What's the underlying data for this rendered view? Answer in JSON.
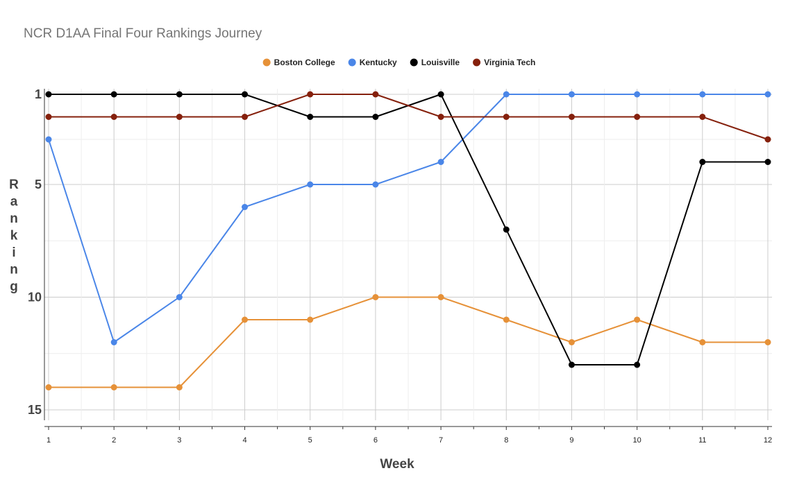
{
  "chart_data": {
    "type": "line",
    "title": "NCR D1AA Final Four Rankings Journey",
    "xlabel": "Week",
    "ylabel": "Ranking",
    "x": [
      1,
      2,
      3,
      4,
      5,
      6,
      7,
      8,
      9,
      10,
      11,
      12
    ],
    "x_tick_labels": [
      "1",
      "2",
      "3",
      "4",
      "5",
      "6",
      "7",
      "8",
      "9",
      "10",
      "11",
      "12"
    ],
    "ylim": [
      15,
      1
    ],
    "y_reversed": true,
    "y_ticks": [
      1,
      5,
      10,
      15
    ],
    "y_tick_labels": [
      "1",
      "5",
      "10",
      "15"
    ],
    "grid": true,
    "legend_position": "top",
    "series": [
      {
        "name": "Boston College",
        "color": "#e69138",
        "values": [
          14,
          14,
          14,
          11,
          11,
          10,
          10,
          11,
          12,
          11,
          12,
          12
        ]
      },
      {
        "name": "Kentucky",
        "color": "#4a86e8",
        "values": [
          3,
          12,
          10,
          6,
          5,
          5,
          4,
          1,
          1,
          1,
          1,
          1
        ]
      },
      {
        "name": "Louisville",
        "color": "#000000",
        "values": [
          1,
          1,
          1,
          1,
          2,
          2,
          1,
          7,
          13,
          13,
          4,
          4
        ]
      },
      {
        "name": "Virginia Tech",
        "color": "#85200c",
        "values": [
          2,
          2,
          2,
          2,
          1,
          1,
          2,
          2,
          2,
          2,
          2,
          3
        ]
      }
    ]
  }
}
